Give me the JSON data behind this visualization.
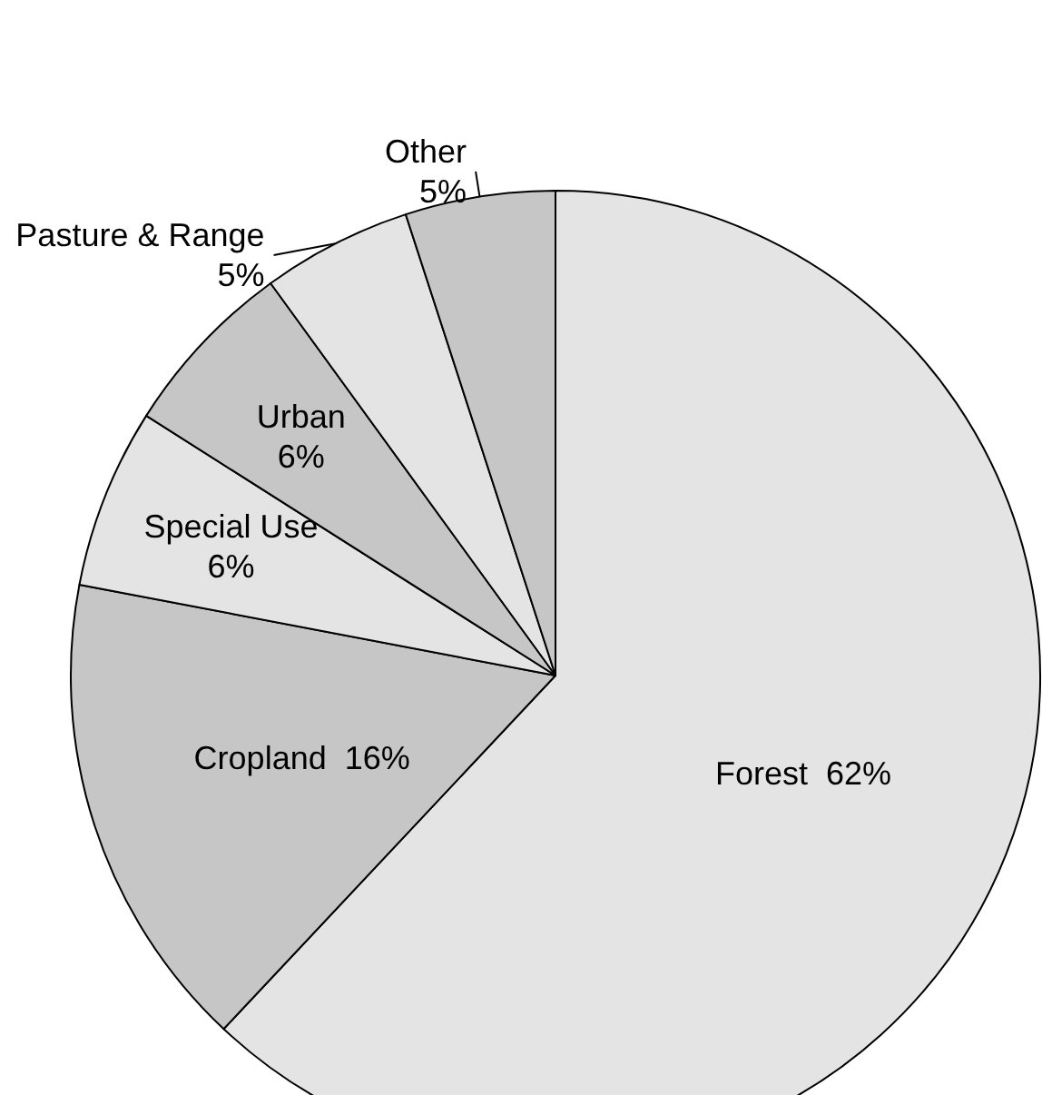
{
  "chart_data": {
    "type": "pie",
    "categories": [
      "Forest",
      "Cropland",
      "Special Use",
      "Urban",
      "Pasture & Range",
      "Other"
    ],
    "values": [
      62,
      16,
      6,
      6,
      5,
      5
    ],
    "value_labels": [
      "62%",
      "16%",
      "6%",
      "6%",
      "5%",
      "5%"
    ],
    "colors": [
      "#e4e4e4",
      "#c6c6c6",
      "#e4e4e4",
      "#c6c6c6",
      "#e4e4e4",
      "#c6c6c6"
    ]
  }
}
